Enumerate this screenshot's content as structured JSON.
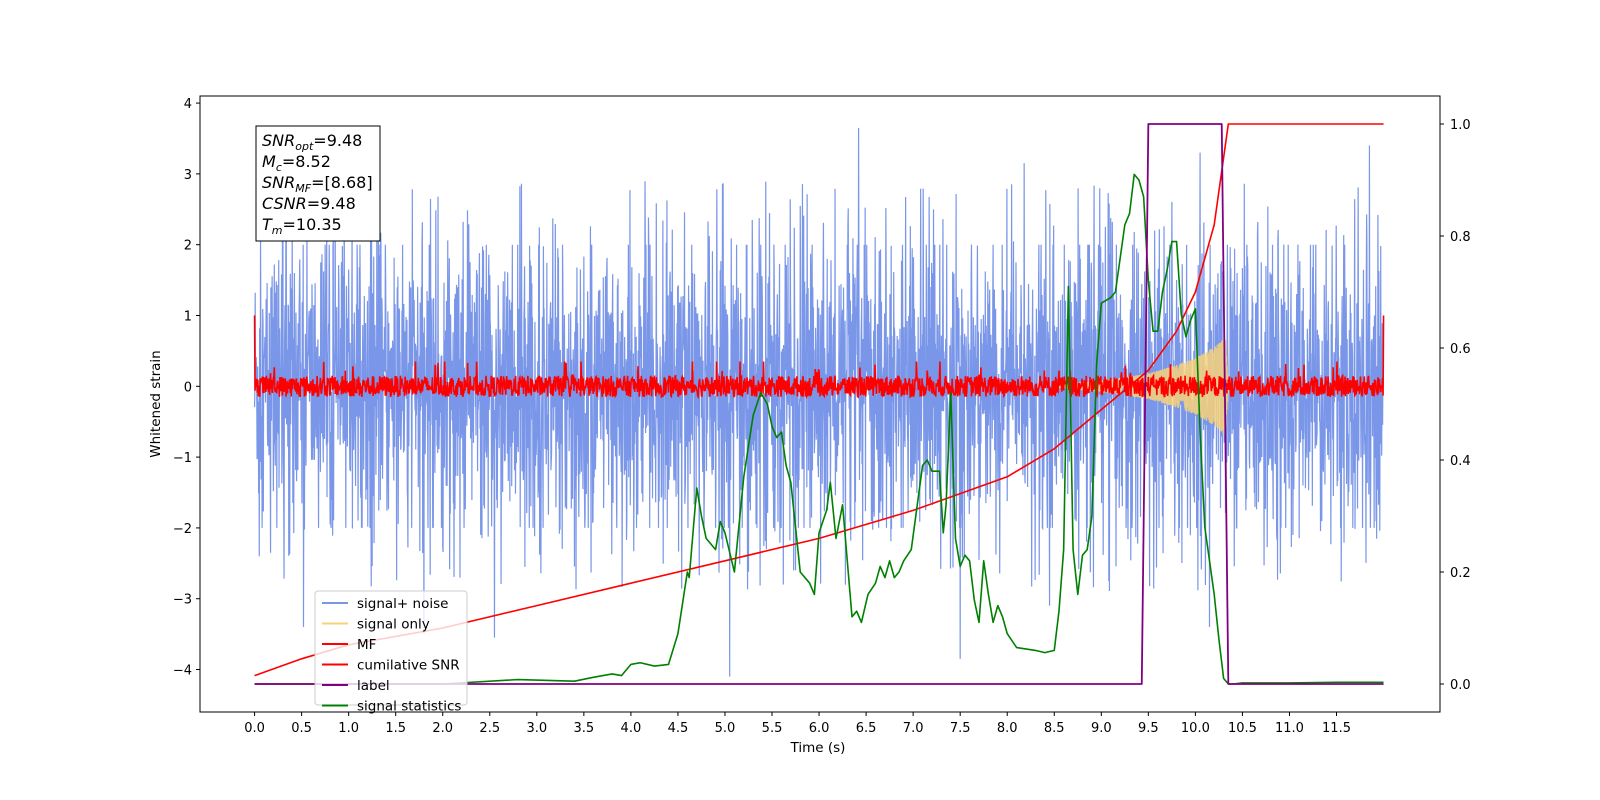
{
  "chart_data": {
    "type": "line",
    "title": "",
    "xlabel": "Time (s)",
    "ylabel": "Whitened strain",
    "xlim": [
      -0.58,
      12.6
    ],
    "ylim_left": [
      -4.6,
      4.1
    ],
    "ylim_right": [
      -0.05,
      1.05
    ],
    "x_ticks": [
      "0.0",
      "0.5",
      "1.0",
      "1.5",
      "2.0",
      "2.5",
      "3.0",
      "3.5",
      "4.0",
      "4.5",
      "5.0",
      "5.5",
      "6.0",
      "6.5",
      "7.0",
      "7.5",
      "8.0",
      "8.5",
      "9.0",
      "9.5",
      "10.0",
      "10.5",
      "11.0",
      "11.5"
    ],
    "y_ticks_left": [
      "4",
      "3",
      "2",
      "1",
      "0",
      "−1",
      "−2",
      "−3",
      "−4"
    ],
    "y_ticks_right": [
      "1.0",
      "0.8",
      "0.6",
      "0.4",
      "0.2",
      "0.0"
    ],
    "annotation": {
      "lines": [
        {
          "base": "SNR",
          "sub": "opt",
          "rest": "=9.48"
        },
        {
          "base": "M",
          "sub": "c",
          "rest": "=8.52"
        },
        {
          "base": "SNR",
          "sub": "MF",
          "rest": "=[8.68]"
        },
        {
          "base": "CSNR",
          "sub": "",
          "rest": "=9.48"
        },
        {
          "base": "T",
          "sub": "m",
          "rest": "=10.35"
        }
      ]
    },
    "legend": {
      "position": "lower-left",
      "entries": [
        {
          "label": "signal+ noise",
          "color": "#7a96e8"
        },
        {
          "label": "signal only",
          "color": "#f7d27a"
        },
        {
          "label": "MF",
          "color": "#ff0000"
        },
        {
          "label": "cumilative SNR",
          "color": "#ff0000"
        },
        {
          "label": "label",
          "color": "#800080"
        },
        {
          "label": "signal statistics",
          "color": "#008000"
        }
      ]
    },
    "series": [
      {
        "name": "signal+ noise",
        "axis": "left",
        "color": "#7a96e8",
        "x_range": [
          0.0,
          12.0
        ],
        "envelope_upper": 2.0,
        "envelope_lower": -2.0,
        "peaks": [
          [
            0.3,
            3.0
          ],
          [
            1.3,
            3.1
          ],
          [
            2.55,
            3.2
          ],
          [
            5.05,
            3.35
          ],
          [
            6.42,
            3.65
          ],
          [
            8.18,
            3.15
          ],
          [
            10.05,
            3.3
          ],
          [
            11.85,
            3.4
          ]
        ],
        "troughs": [
          [
            0.05,
            -2.4
          ],
          [
            0.52,
            -3.4
          ],
          [
            1.8,
            -3.5
          ],
          [
            2.55,
            -3.55
          ],
          [
            5.05,
            -4.1
          ],
          [
            7.5,
            -3.85
          ],
          [
            8.45,
            -3.1
          ],
          [
            10.15,
            -3.4
          ]
        ]
      },
      {
        "name": "signal only",
        "axis": "left",
        "color": "#f7d27a",
        "x": [
          8.5,
          9.0,
          9.5,
          9.8,
          10.0,
          10.2,
          10.32,
          10.35
        ],
        "amplitude": [
          0.02,
          0.08,
          0.18,
          0.3,
          0.4,
          0.55,
          0.7,
          0.0
        ]
      },
      {
        "name": "MF",
        "axis": "left",
        "color": "#ff0000",
        "x_range": [
          0.0,
          12.0
        ],
        "band": [
          -0.15,
          0.2
        ],
        "edge_values": [
          1.0,
          1.0
        ]
      },
      {
        "name": "cumilative SNR",
        "axis": "right",
        "color": "#ff0000",
        "x": [
          0.0,
          0.5,
          1.0,
          2.0,
          3.0,
          4.0,
          5.0,
          6.0,
          7.0,
          7.5,
          8.0,
          8.5,
          9.0,
          9.5,
          9.8,
          10.0,
          10.2,
          10.35,
          11.0,
          12.0
        ],
        "values": [
          0.015,
          0.045,
          0.07,
          0.1,
          0.14,
          0.18,
          0.22,
          0.26,
          0.31,
          0.34,
          0.37,
          0.42,
          0.49,
          0.56,
          0.63,
          0.7,
          0.82,
          1.0,
          1.0,
          1.0
        ]
      },
      {
        "name": "label",
        "axis": "right",
        "color": "#800080",
        "x": [
          0.0,
          9.43,
          9.5,
          10.28,
          10.35,
          12.0
        ],
        "values": [
          0.0,
          0.0,
          1.0,
          1.0,
          0.0,
          0.0
        ]
      },
      {
        "name": "signal statistics",
        "axis": "right",
        "color": "#008000",
        "x": [
          0.0,
          2.0,
          2.8,
          3.4,
          3.6,
          3.8,
          3.9,
          4.0,
          4.1,
          4.25,
          4.4,
          4.5,
          4.6,
          4.62,
          4.7,
          4.75,
          4.8,
          4.9,
          4.95,
          5.0,
          5.1,
          5.2,
          5.3,
          5.38,
          5.45,
          5.5,
          5.55,
          5.6,
          5.65,
          5.7,
          5.8,
          5.9,
          5.95,
          6.0,
          6.08,
          6.12,
          6.18,
          6.25,
          6.3,
          6.35,
          6.4,
          6.45,
          6.52,
          6.6,
          6.65,
          6.7,
          6.75,
          6.8,
          6.85,
          6.9,
          6.98,
          7.1,
          7.15,
          7.2,
          7.28,
          7.32,
          7.35,
          7.4,
          7.45,
          7.5,
          7.55,
          7.6,
          7.65,
          7.7,
          7.75,
          7.8,
          7.85,
          7.9,
          7.95,
          8.0,
          8.1,
          8.3,
          8.4,
          8.5,
          8.55,
          8.6,
          8.65,
          8.7,
          8.75,
          8.8,
          8.85,
          8.9,
          8.95,
          9.0,
          9.1,
          9.15,
          9.25,
          9.3,
          9.35,
          9.4,
          9.45,
          9.5,
          9.55,
          9.6,
          9.65,
          9.7,
          9.75,
          9.8,
          9.85,
          9.9,
          9.95,
          10.0,
          10.05,
          10.1,
          10.15,
          10.2,
          10.25,
          10.3,
          10.35,
          10.4,
          10.5,
          11.0,
          11.5,
          12.0
        ],
        "values": [
          0.0,
          0.0,
          0.008,
          0.005,
          0.012,
          0.018,
          0.015,
          0.035,
          0.038,
          0.032,
          0.035,
          0.09,
          0.2,
          0.19,
          0.35,
          0.3,
          0.26,
          0.24,
          0.29,
          0.27,
          0.2,
          0.37,
          0.48,
          0.52,
          0.5,
          0.46,
          0.44,
          0.45,
          0.39,
          0.36,
          0.2,
          0.18,
          0.16,
          0.27,
          0.31,
          0.36,
          0.26,
          0.32,
          0.22,
          0.12,
          0.13,
          0.11,
          0.16,
          0.18,
          0.21,
          0.19,
          0.22,
          0.19,
          0.2,
          0.22,
          0.24,
          0.39,
          0.4,
          0.38,
          0.38,
          0.27,
          0.32,
          0.52,
          0.26,
          0.21,
          0.23,
          0.22,
          0.15,
          0.11,
          0.22,
          0.16,
          0.11,
          0.14,
          0.12,
          0.09,
          0.065,
          0.06,
          0.056,
          0.06,
          0.13,
          0.24,
          0.71,
          0.24,
          0.16,
          0.23,
          0.24,
          0.3,
          0.57,
          0.68,
          0.69,
          0.7,
          0.82,
          0.84,
          0.91,
          0.9,
          0.87,
          0.72,
          0.63,
          0.63,
          0.7,
          0.74,
          0.79,
          0.79,
          0.66,
          0.62,
          0.65,
          0.67,
          0.45,
          0.28,
          0.22,
          0.16,
          0.08,
          0.01,
          0.0,
          0.0,
          0.002,
          0.002,
          0.003,
          0.003
        ]
      }
    ]
  }
}
